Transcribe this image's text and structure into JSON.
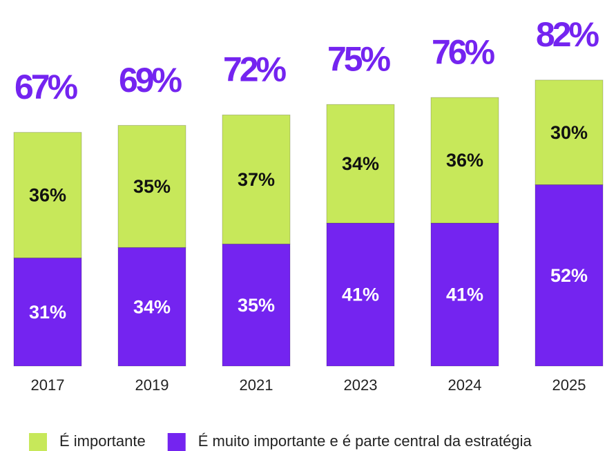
{
  "chart_data": {
    "type": "stacked-bar",
    "categories": [
      "2017",
      "2019",
      "2021",
      "2023",
      "2024",
      "2025"
    ],
    "series": [
      {
        "name": "É muito importante e é parte central da estratégia",
        "color": "#7424f0",
        "values": [
          31,
          34,
          35,
          41,
          41,
          52
        ],
        "value_labels": [
          "31%",
          "34%",
          "35%",
          "41%",
          "41%",
          "52%"
        ],
        "label_color": "#ffffff"
      },
      {
        "name": "É importante",
        "color": "#c7e85a",
        "values": [
          36,
          35,
          37,
          34,
          36,
          30
        ],
        "value_labels": [
          "36%",
          "35%",
          "37%",
          "34%",
          "36%",
          "30%"
        ],
        "label_color": "#111111"
      }
    ],
    "totals": [
      67,
      69,
      72,
      75,
      76,
      82
    ],
    "total_labels": [
      "67%",
      "69%",
      "72%",
      "75%",
      "76%",
      "82%"
    ],
    "total_color": "#7424f0",
    "ylim": [
      0,
      100
    ]
  }
}
